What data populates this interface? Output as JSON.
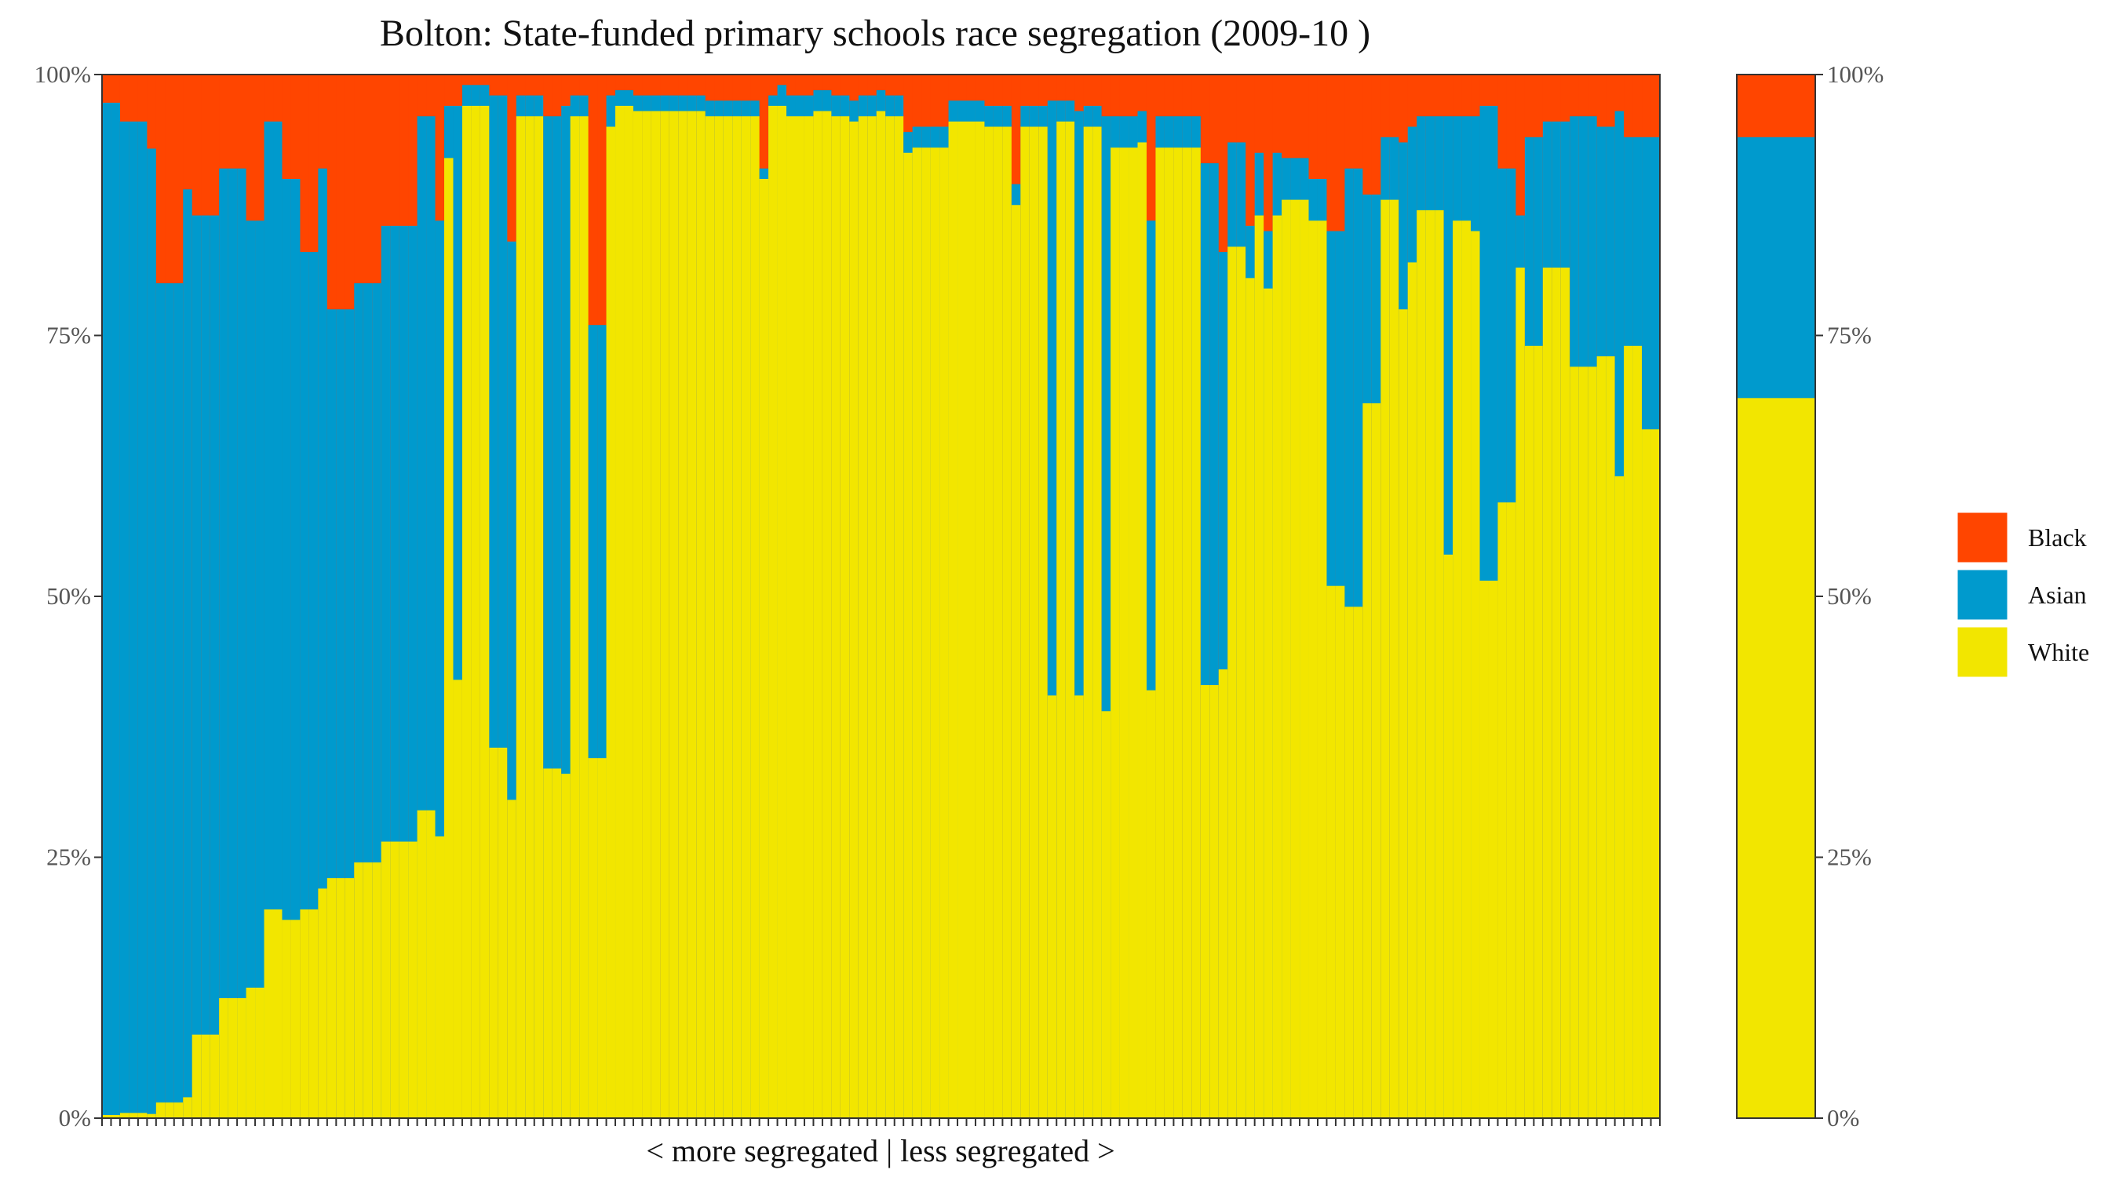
{
  "chart_data": {
    "type": "bar",
    "title": "Bolton: State-funded primary schools race segregation (2009-10 )",
    "xlabel": "< more segregated | less segregated >",
    "ylabel": "",
    "ylim": [
      0,
      100
    ],
    "yticks": [
      "0%",
      "25%",
      "50%",
      "75%",
      "100%"
    ],
    "stacked": true,
    "stack_order": [
      "White",
      "Asian",
      "Black"
    ],
    "legend": {
      "position": "right",
      "entries": [
        "Black",
        "Asian",
        "White"
      ]
    },
    "colors": {
      "Black": "#ff4500",
      "Asian": "#009acd",
      "White": "#f2e600"
    },
    "schools": {
      "white": [
        0.3,
        0.3,
        0.5,
        0.5,
        0.5,
        0.4,
        1.5,
        1.5,
        1.5,
        2.0,
        8,
        8,
        8,
        11.5,
        11.5,
        11.5,
        12.5,
        12.5,
        20,
        20,
        19,
        19,
        20,
        20,
        22,
        23,
        23,
        23,
        24.5,
        24.5,
        24.5,
        26.5,
        26.5,
        26.5,
        26.5,
        29.5,
        29.5,
        27,
        92,
        42,
        97,
        97,
        97,
        35.5,
        35.5,
        30.5,
        96,
        96,
        96,
        33.5,
        33.5,
        33,
        96,
        96,
        34.5,
        34.5,
        95,
        97,
        97,
        96.5,
        96.5,
        96.5,
        96.5,
        96.5,
        96.5,
        96.5,
        96.5,
        96,
        96,
        96,
        96,
        96,
        96,
        90,
        97,
        97,
        96,
        96,
        96,
        96.5,
        96.5,
        96,
        96,
        95.5,
        96,
        96,
        96.5,
        96,
        96,
        92.5,
        93,
        93,
        93,
        93,
        95.5,
        95.5,
        95.5,
        95.5,
        95,
        95,
        95,
        87.5,
        95,
        95,
        95,
        40.5,
        95.5,
        95.5,
        40.5,
        95,
        95,
        39,
        93,
        93,
        93,
        93.5,
        41,
        93,
        93,
        93,
        93,
        93,
        41.5,
        41.5,
        43,
        83.5,
        83.5,
        80.5,
        86.5,
        79.5,
        86.5,
        88,
        88,
        88,
        86,
        86,
        51,
        51,
        49,
        49,
        68.5,
        68.5,
        88,
        88,
        77.5,
        82,
        87,
        87,
        87,
        54,
        86,
        86,
        85,
        51.5,
        51.5,
        59,
        59,
        81.5,
        74,
        74,
        81.5,
        81.5,
        81.5,
        72,
        72,
        72,
        73,
        73,
        61.5,
        74,
        74,
        66,
        66
      ],
      "asian": [
        97,
        97,
        95,
        95,
        95,
        92.5,
        78.5,
        78.5,
        78.5,
        87,
        78.5,
        78.5,
        78.5,
        79.5,
        79.5,
        79.5,
        73.5,
        73.5,
        75.5,
        75.5,
        71,
        71,
        63,
        63,
        69,
        54.5,
        54.5,
        54.5,
        55.5,
        55.5,
        55.5,
        59,
        59,
        59,
        59,
        66.5,
        66.5,
        59,
        5,
        55,
        2,
        2,
        2,
        62.5,
        62.5,
        53.5,
        2,
        2,
        2,
        62.5,
        62.5,
        64,
        2,
        2,
        41.5,
        41.5,
        3,
        1.5,
        1.5,
        1.5,
        1.5,
        1.5,
        1.5,
        1.5,
        1.5,
        1.5,
        1.5,
        1.5,
        1.5,
        1.5,
        1.5,
        1.5,
        1.5,
        1,
        1,
        2,
        2,
        2,
        2,
        2,
        2,
        2,
        2,
        2,
        2,
        2,
        2,
        2,
        2,
        2,
        2,
        2,
        2,
        2,
        2,
        2,
        2,
        2,
        2,
        2,
        2,
        2,
        2,
        2,
        2,
        57,
        2,
        2,
        56,
        2,
        2,
        57,
        3,
        3,
        3,
        3,
        45,
        3,
        3,
        3,
        3,
        3,
        50,
        50,
        40,
        10,
        10,
        5,
        6,
        5.5,
        6,
        4,
        4,
        4,
        4,
        4,
        34,
        34,
        42,
        42,
        20,
        20,
        6,
        6,
        16,
        13,
        9,
        9,
        9,
        42,
        10,
        10,
        11,
        45.5,
        45.5,
        32,
        32,
        5,
        20,
        20,
        14,
        14,
        14,
        24,
        24,
        24,
        22,
        22,
        35,
        20,
        20,
        28,
        28
      ]
    }
  },
  "reference_bar": {
    "White": 69,
    "Asian": 25,
    "Black": 6
  }
}
